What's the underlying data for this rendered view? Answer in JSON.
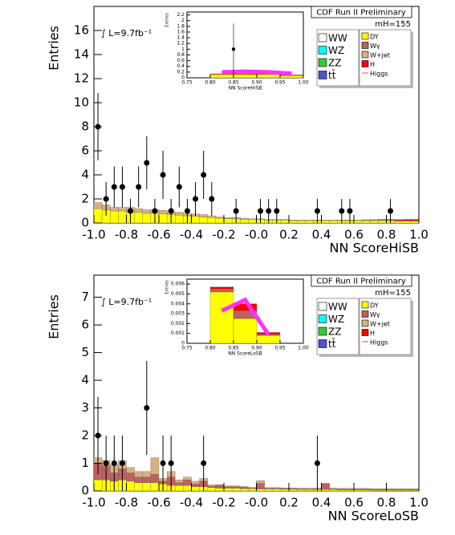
{
  "chart_data": [
    {
      "type": "histogram",
      "title": "CDF Run II Preliminary",
      "annotations": [
        "∫ L=9.7fb⁻¹",
        "mH=155"
      ],
      "ylabel": "Entries",
      "xlabel": "NN ScoreHiSB",
      "xlim": [
        -1,
        1
      ],
      "ylim": [
        0,
        18
      ],
      "xticks": [
        {
          "value": -1,
          "label": "-1.0"
        },
        -0.8,
        -0.6,
        -0.4,
        -0.2,
        {
          "value": 0,
          "label": "-0.0"
        },
        0.2,
        0.4,
        0.6,
        0.8,
        {
          "value": 1,
          "label": "1.0"
        }
      ],
      "yticks": [
        0,
        2,
        4,
        6,
        8,
        10,
        12,
        14,
        16
      ],
      "bins": [
        -1,
        -0.95,
        -0.9,
        -0.85,
        -0.8,
        -0.75,
        -0.7,
        -0.65,
        -0.6,
        -0.55,
        -0.5,
        -0.45,
        -0.4,
        -0.35,
        -0.3,
        -0.25,
        -0.2,
        -0.15,
        -0.1,
        -0.05,
        0,
        0.05,
        0.1,
        0.15,
        0.2,
        0.25,
        0.3,
        0.35,
        0.4,
        0.45,
        0.5,
        0.55,
        0.6,
        0.65,
        0.7,
        0.75,
        0.8,
        0.85,
        0.9,
        0.95,
        1
      ],
      "series": [
        {
          "name": "WW",
          "color": "#ffffff"
        },
        {
          "name": "WZ",
          "color": "#00ffff"
        },
        {
          "name": "ZZ",
          "color": "#33cc33"
        },
        {
          "name": "tt̄",
          "color": "#5050d0"
        },
        {
          "name": "DY",
          "color": "#ffff00",
          "values": [
            1.2,
            1.1,
            1.0,
            1.0,
            0.9,
            0.9,
            0.8,
            0.8,
            0.75,
            0.7,
            0.65,
            0.6,
            0.55,
            0.5,
            0.45,
            0.4,
            0.35,
            0.35,
            0.3,
            0.3,
            0.3,
            0.25,
            0.25,
            0.25,
            0.2,
            0.2,
            0.2,
            0.2,
            0.2,
            0.2,
            0.2,
            0.2,
            0.2,
            0.2,
            0.2,
            0.2,
            0.2,
            0.15,
            0.15,
            0.15
          ]
        },
        {
          "name": "Wγ",
          "color": "#c06060"
        },
        {
          "name": "W+jet",
          "color": "#d8b080",
          "values": [
            0.5,
            0.4,
            0.3,
            0.3,
            0.4,
            0.3,
            0.3,
            0.3,
            0.3,
            0.25,
            0.25,
            0.2,
            0.2,
            0.2,
            0.15,
            0.1,
            0.1,
            0.1,
            0.1,
            0.05,
            0.05,
            0.05,
            0.05,
            0.05,
            0.05,
            0.05,
            0.05,
            0.05,
            0.05,
            0.05,
            0.05,
            0.05,
            0.05,
            0.05,
            0.05,
            0.05,
            0.05,
            0.05,
            0.05,
            0.05
          ]
        },
        {
          "name": "H",
          "color": "#ff0000",
          "values": [
            0,
            0,
            0,
            0,
            0,
            0,
            0,
            0,
            0,
            0,
            0,
            0,
            0,
            0,
            0,
            0,
            0,
            0,
            0,
            0,
            0,
            0,
            0,
            0,
            0,
            0,
            0,
            0,
            0,
            0,
            0,
            0,
            0,
            0.02,
            0.03,
            0.05,
            0.05,
            0.08,
            0.1,
            0.1
          ]
        },
        {
          "name": "Higgs",
          "color": "#ff6060",
          "style": "line"
        }
      ],
      "points": {
        "x": [
          -0.975,
          -0.925,
          -0.875,
          -0.825,
          -0.775,
          -0.725,
          -0.675,
          -0.625,
          -0.575,
          -0.525,
          -0.475,
          -0.425,
          -0.375,
          -0.325,
          -0.275,
          -0.125,
          0.025,
          0.075,
          0.125,
          0.375,
          0.525,
          0.575,
          0.825
        ],
        "y": [
          8,
          2,
          3,
          3,
          1,
          3,
          5,
          1,
          4,
          1,
          3,
          1,
          2,
          4,
          2,
          1,
          1,
          1,
          1,
          1,
          1,
          1,
          1
        ],
        "yerr": [
          2.8,
          1.4,
          1.7,
          1.7,
          1,
          1.7,
          2.2,
          1,
          2,
          1,
          1.7,
          1,
          1.4,
          2,
          1.4,
          1,
          1,
          1,
          1,
          1,
          1,
          1,
          1
        ]
      }
    },
    {
      "type": "histogram",
      "ylabel": "Entries",
      "xlabel": "NN ScoreHiSB",
      "xlim": [
        0.75,
        1
      ],
      "ylim": [
        0,
        2.3
      ],
      "xticks": [
        0.75,
        {
          "value": 0.8,
          "label": "0.80"
        },
        0.85,
        {
          "value": 0.9,
          "label": "0.90"
        },
        0.95,
        {
          "value": 1,
          "label": "1.00"
        }
      ],
      "yticks": [
        0,
        0.2,
        0.4,
        0.6,
        0.8,
        1,
        1.2,
        1.4,
        1.6,
        1.8,
        2,
        2.2
      ],
      "bins": [
        0.75,
        0.8,
        0.85,
        0.9,
        0.95,
        1
      ],
      "series": [
        {
          "color": "#ffff00",
          "values": [
            0,
            0.12,
            0.12,
            0.12,
            0.08
          ]
        },
        {
          "color": "#ff0000",
          "values": [
            0,
            0.02,
            0.02,
            0.02,
            0.02
          ]
        },
        {
          "color": "#ff30ff",
          "style": "line",
          "values": [
            null,
            0.2,
            0.22,
            0.2,
            0.15
          ]
        }
      ],
      "points": {
        "x": [
          0.85
        ],
        "y": [
          1
        ],
        "yerr": [
          0.9
        ]
      }
    },
    {
      "type": "histogram",
      "title": "CDF Run II Preliminary",
      "annotations": [
        "∫ L=9.7fb⁻¹",
        "mH=155"
      ],
      "ylabel": "Entries",
      "xlabel": "NN ScoreLoSB",
      "xlim": [
        -1,
        1
      ],
      "ylim": [
        0,
        7.8
      ],
      "xticks": [
        {
          "value": -1,
          "label": "-1.0"
        },
        -0.8,
        -0.6,
        -0.4,
        -0.2,
        {
          "value": 0,
          "label": "-0.0"
        },
        0.2,
        0.4,
        0.6,
        0.8,
        {
          "value": 1,
          "label": "1.0"
        }
      ],
      "yticks": [
        0,
        1,
        2,
        3,
        4,
        5,
        6,
        7
      ],
      "bins": [
        -1,
        -0.95,
        -0.9,
        -0.85,
        -0.8,
        -0.75,
        -0.7,
        -0.65,
        -0.6,
        -0.55,
        -0.5,
        -0.45,
        -0.4,
        -0.35,
        -0.3,
        -0.25,
        -0.2,
        -0.15,
        -0.1,
        -0.05,
        0,
        0.05,
        0.1,
        0.15,
        0.2,
        0.25,
        0.3,
        0.35,
        0.4,
        0.45,
        0.5,
        0.55,
        0.6,
        0.65,
        0.7,
        0.75,
        0.8,
        0.85,
        0.9,
        0.95,
        1
      ],
      "series": [
        {
          "name": "WW",
          "color": "#ffffff"
        },
        {
          "name": "WZ",
          "color": "#00ffff"
        },
        {
          "name": "ZZ",
          "color": "#33cc33"
        },
        {
          "name": "tt̄",
          "color": "#5050d0"
        },
        {
          "name": "DY",
          "color": "#ffff00",
          "values": [
            0.4,
            0.4,
            0.35,
            0.4,
            0.35,
            0.3,
            0.3,
            0.3,
            0.25,
            0.2,
            0.2,
            0.2,
            0.15,
            0.15,
            0.12,
            0.1,
            0.1,
            0.1,
            0.08,
            0.08,
            0.07,
            0.07,
            0.07,
            0.06,
            0.06,
            0.05,
            0.05,
            0.05,
            0.05,
            0.05,
            0.04,
            0.04,
            0.04,
            0.04,
            0.03,
            0.03,
            0.03,
            0.03,
            0.03,
            0.03
          ]
        },
        {
          "name": "Wγ",
          "color": "#c06060",
          "values": [
            0.6,
            0.5,
            0.3,
            0.4,
            0.3,
            0.2,
            0.2,
            0.3,
            0.1,
            0.3,
            0.1,
            0.2,
            0.1,
            0.2,
            0.05,
            0.1,
            0.05,
            0.05,
            0.05,
            0.02,
            0.2,
            0.02,
            0.02,
            0.02,
            0.02,
            0.02,
            0.02,
            0.02,
            0.2,
            0.02,
            0.02,
            0.02,
            0.02,
            0.02,
            0.02,
            0.02,
            0.02,
            0.02,
            0.02,
            0.02
          ]
        },
        {
          "name": "W+jet",
          "color": "#d8b080",
          "values": [
            0.2,
            0.2,
            0.3,
            0.3,
            0.2,
            0.2,
            0.2,
            0.6,
            0.1,
            0.2,
            0.1,
            0.1,
            0.1,
            0.1,
            0.05,
            0.03,
            0.03,
            0.03,
            0.03,
            0.03,
            0.1,
            0.03,
            0.03,
            0.03,
            0.03,
            0.03,
            0.03,
            0.03,
            0.03,
            0.03,
            0.03,
            0.03,
            0.03,
            0.03,
            0.03,
            0.03,
            0.03,
            0.03,
            0.03,
            0.03
          ]
        },
        {
          "name": "H",
          "color": "#ff0000"
        },
        {
          "name": "Higgs",
          "color": "#ff6060",
          "style": "line"
        }
      ],
      "points": {
        "x": [
          -0.975,
          -0.925,
          -0.875,
          -0.825,
          -0.675,
          -0.575,
          -0.525,
          -0.325,
          0.375
        ],
        "y": [
          2,
          1,
          1,
          1,
          3,
          1,
          1,
          1,
          1
        ],
        "yerr": [
          1.4,
          1,
          1,
          1,
          1.7,
          1,
          1,
          1,
          1
        ]
      }
    },
    {
      "type": "histogram",
      "ylabel": "Entries",
      "xlabel": "NN ScoreLoSB",
      "xlim": [
        0.75,
        1
      ],
      "ylim": [
        0,
        0.0065
      ],
      "xticks": [
        0.75,
        {
          "value": 0.8,
          "label": "0.80"
        },
        0.85,
        {
          "value": 0.9,
          "label": "0.90"
        },
        0.95,
        {
          "value": 1,
          "label": "1.00"
        }
      ],
      "yticks": [
        0,
        0.001,
        0.002,
        0.003,
        0.004,
        0.005,
        0.006
      ],
      "bins": [
        0.75,
        0.8,
        0.85,
        0.9,
        0.95,
        1
      ],
      "series": [
        {
          "color": "#ffff00",
          "values": [
            0,
            0.0052,
            0.0025,
            0.0008,
            0
          ]
        },
        {
          "color": "#c06060",
          "values": [
            0,
            0.0003,
            0.0008,
            0.0001,
            0
          ]
        },
        {
          "color": "#ff0000",
          "values": [
            0,
            0.0002,
            0.0007,
            0.0002,
            0
          ]
        },
        {
          "color": "#ff30ff",
          "style": "line",
          "values": [
            null,
            0.0033,
            0.0044,
            0.0009,
            null
          ]
        }
      ]
    }
  ]
}
